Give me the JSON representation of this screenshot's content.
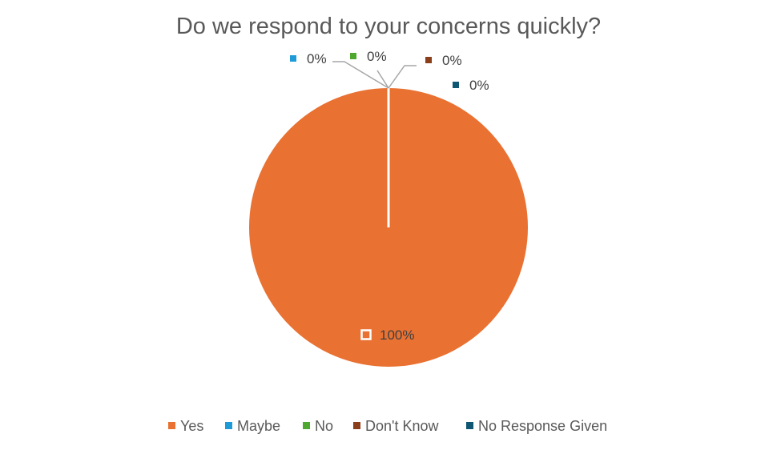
{
  "chart_data": {
    "type": "pie",
    "title": "Do we respond to your concerns quickly?",
    "categories": [
      "Yes",
      "Maybe",
      "No",
      "Don't Know",
      "No Response Given"
    ],
    "values": [
      100,
      0,
      0,
      0,
      0
    ],
    "data_labels": [
      "100%",
      "0%",
      "0%",
      "0%",
      "0%"
    ],
    "colors": [
      "#E97132",
      "#1E9BD7",
      "#4EA72E",
      "#8B3E1A",
      "#0F5672"
    ],
    "legend_position": "bottom"
  }
}
